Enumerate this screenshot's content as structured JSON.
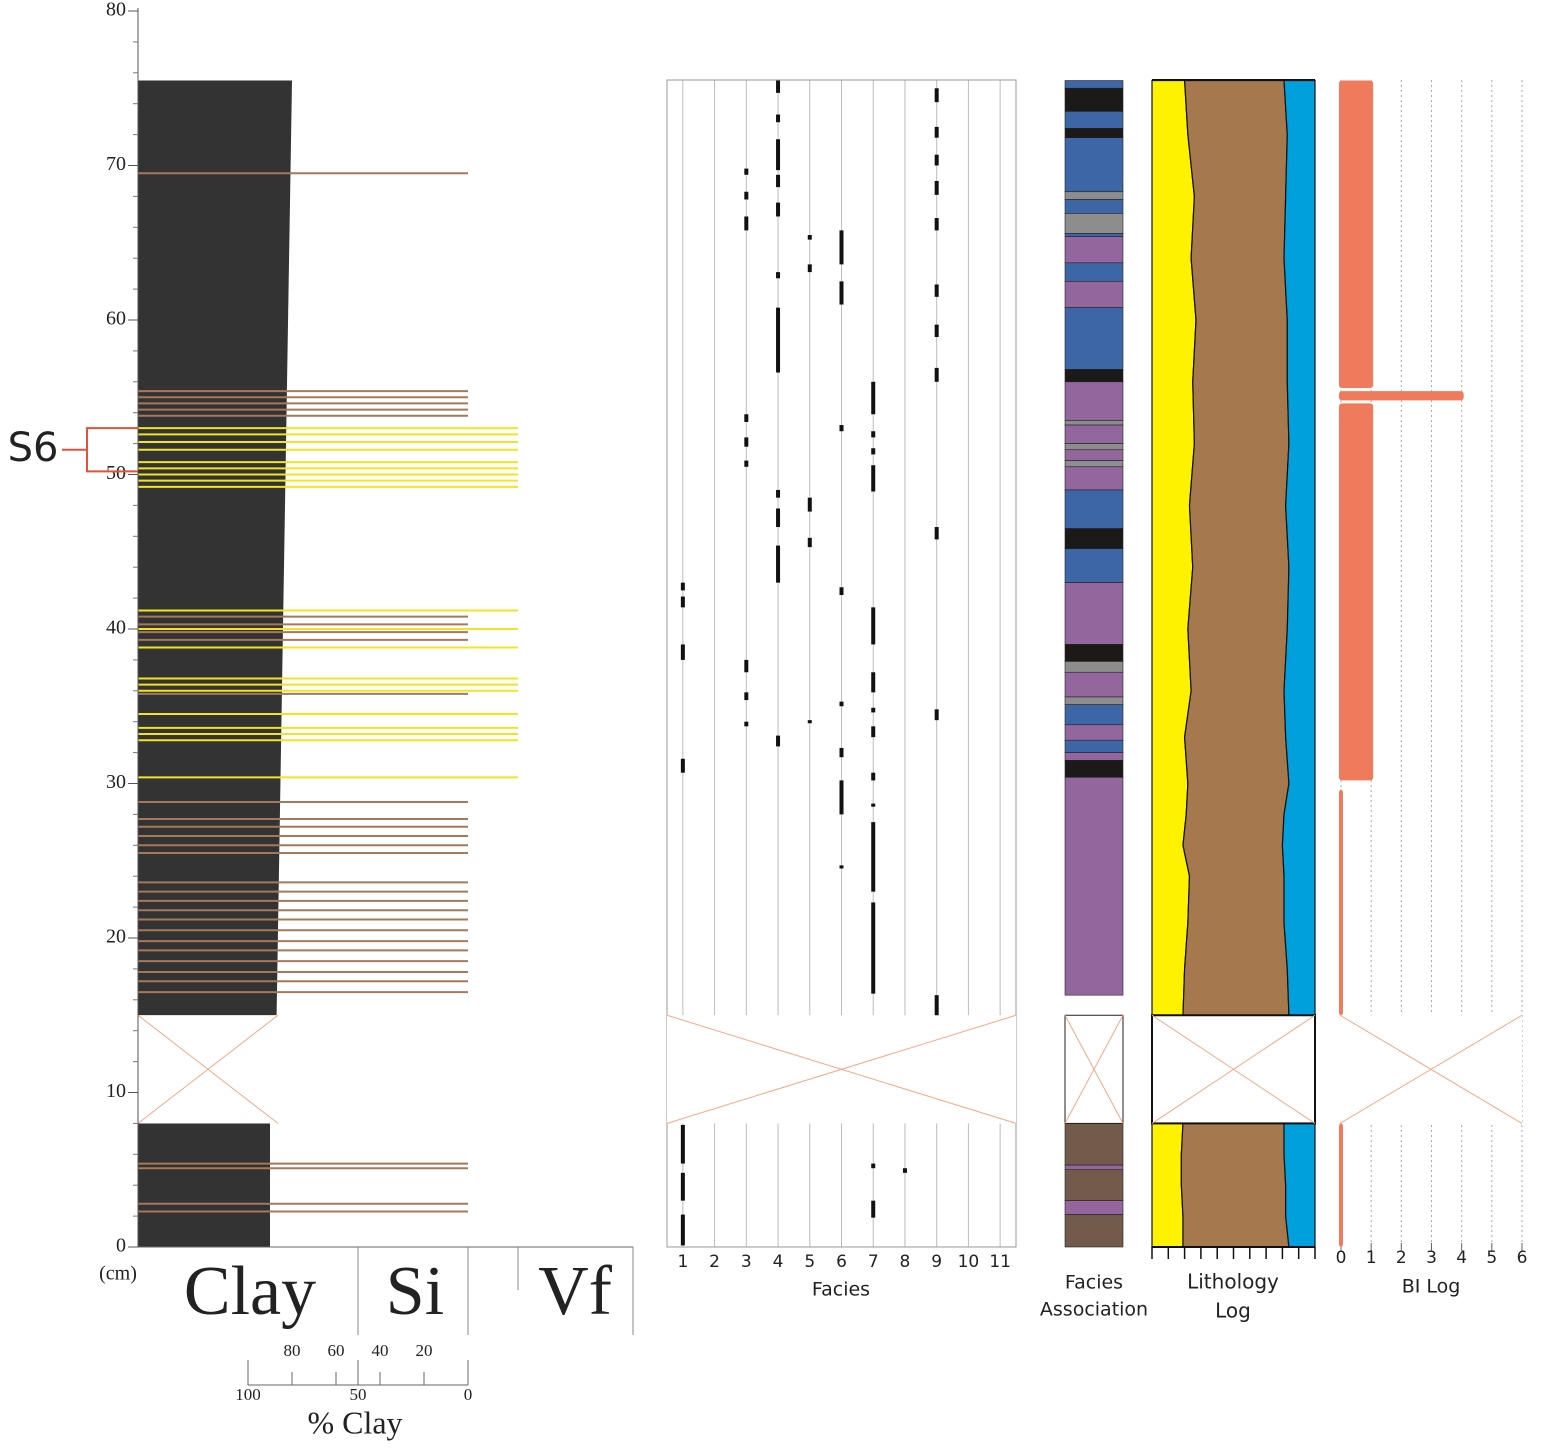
{
  "chart_data": [
    {
      "type": "grain-size-log",
      "ylabel": "(cm)",
      "ylim": [
        0,
        80
      ],
      "yticks": [
        0,
        10,
        20,
        30,
        40,
        50,
        60,
        70,
        80
      ],
      "yminorticks": [
        2,
        4,
        6,
        8,
        12,
        14,
        16,
        18,
        22,
        24,
        26,
        28,
        32,
        34,
        36,
        38,
        42,
        44,
        46,
        48,
        52,
        54,
        56,
        58,
        62,
        64,
        66,
        68,
        72,
        74,
        76,
        78
      ],
      "depth_gap": [
        8,
        15
      ],
      "columns": [
        "Clay",
        "Si",
        "Vf"
      ],
      "xlabel": "% Clay",
      "xlim": [
        100,
        0
      ],
      "xticks": [
        100,
        50,
        0
      ],
      "xminorticks": [
        80,
        60,
        40,
        20
      ],
      "clay_profile": {
        "color": "#333333",
        "depth": [
          0,
          8,
          15,
          75.5
        ],
        "values": [
          90,
          90,
          87,
          80
        ]
      },
      "silt_laminae": {
        "color": "#a5795a",
        "depths": [
          2.3,
          2.8,
          5.1,
          5.4,
          16.5,
          17.2,
          17.8,
          18.5,
          19.2,
          19.8,
          20.5,
          21.2,
          21.8,
          22.4,
          23.0,
          23.6,
          25.5,
          26.0,
          26.6,
          27.2,
          27.7,
          28.8,
          35.8,
          39.3,
          39.8,
          40.3,
          40.8,
          53.8,
          54.2,
          54.6,
          55.0,
          55.4,
          69.5
        ]
      },
      "sand_laminae": {
        "color": "#f2e422",
        "depths": [
          30.4,
          32.8,
          33.2,
          33.6,
          34.5,
          36.0,
          36.4,
          36.8,
          38.8,
          40.0,
          41.2,
          49.2,
          49.6,
          50.0,
          50.4,
          50.8,
          51.6,
          52.1,
          52.6,
          53.0
        ]
      },
      "annotation": {
        "label": "S6",
        "from": 50.2,
        "to": 53.0,
        "color": "#e0533a"
      }
    },
    {
      "type": "facies",
      "xlabel": "Facies",
      "xlim": [
        0.5,
        11.5
      ],
      "xticks": [
        1,
        2,
        3,
        4,
        5,
        6,
        7,
        8,
        9,
        10,
        11
      ],
      "color": "#111111",
      "segments": [
        [
          1,
          43.0,
          42.5
        ],
        [
          1,
          42.1,
          41.4
        ],
        [
          1,
          39.0,
          38.0
        ],
        [
          1,
          31.6,
          30.7
        ],
        [
          1,
          7.9,
          5.4
        ],
        [
          1,
          4.8,
          3.0
        ],
        [
          1,
          2.1,
          0.1
        ],
        [
          3,
          69.8,
          69.4
        ],
        [
          3,
          68.3,
          67.8
        ],
        [
          3,
          66.7,
          65.8
        ],
        [
          3,
          53.9,
          53.4
        ],
        [
          3,
          52.4,
          51.8
        ],
        [
          3,
          50.9,
          50.5
        ],
        [
          3,
          38.0,
          37.2
        ],
        [
          3,
          35.9,
          35.4
        ],
        [
          3,
          34.0,
          33.7
        ],
        [
          4,
          75.5,
          74.7
        ],
        [
          4,
          73.3,
          72.8
        ],
        [
          4,
          71.7,
          69.7
        ],
        [
          4,
          69.4,
          68.6
        ],
        [
          4,
          67.6,
          66.7
        ],
        [
          4,
          63.1,
          62.7
        ],
        [
          4,
          60.8,
          56.6
        ],
        [
          4,
          49.0,
          48.5
        ],
        [
          4,
          47.8,
          46.6
        ],
        [
          4,
          45.4,
          43.0
        ],
        [
          4,
          33.1,
          32.4
        ],
        [
          5,
          65.5,
          65.2
        ],
        [
          5,
          63.6,
          63.1
        ],
        [
          5,
          48.5,
          47.6
        ],
        [
          5,
          45.9,
          45.3
        ],
        [
          5,
          34.1,
          33.9
        ],
        [
          6,
          65.8,
          63.6
        ],
        [
          6,
          62.5,
          61.0
        ],
        [
          6,
          53.2,
          52.8
        ],
        [
          6,
          42.7,
          42.2
        ],
        [
          6,
          35.3,
          35.0
        ],
        [
          6,
          32.3,
          31.7
        ],
        [
          6,
          30.2,
          28.0
        ],
        [
          6,
          24.7,
          24.5
        ],
        [
          7,
          56.0,
          53.9
        ],
        [
          7,
          52.8,
          52.4
        ],
        [
          7,
          51.7,
          51.3
        ],
        [
          7,
          50.6,
          48.9
        ],
        [
          7,
          41.4,
          39.0
        ],
        [
          7,
          37.2,
          35.9
        ],
        [
          7,
          34.9,
          34.6
        ],
        [
          7,
          33.7,
          33.0
        ],
        [
          7,
          30.7,
          30.2
        ],
        [
          7,
          28.7,
          28.5
        ],
        [
          7,
          27.5,
          23.0
        ],
        [
          7,
          22.3,
          16.4
        ],
        [
          7,
          5.4,
          5.1
        ],
        [
          7,
          3.0,
          1.9
        ],
        [
          8,
          5.1,
          4.8
        ],
        [
          9,
          75.0,
          74.1
        ],
        [
          9,
          72.5,
          71.8
        ],
        [
          9,
          70.7,
          70.0
        ],
        [
          9,
          69.0,
          68.1
        ],
        [
          9,
          66.6,
          65.8
        ],
        [
          9,
          62.3,
          61.5
        ],
        [
          9,
          59.7,
          58.9
        ],
        [
          9,
          56.9,
          56.0
        ],
        [
          9,
          46.6,
          45.8
        ],
        [
          9,
          34.8,
          34.1
        ],
        [
          9,
          16.3,
          15.0
        ]
      ]
    },
    {
      "type": "facies-association",
      "xlabel": [
        "Facies",
        "Association"
      ],
      "bands": [
        {
          "from": 75.0,
          "to": 75.5,
          "color": "#3c66a6"
        },
        {
          "from": 73.5,
          "to": 75.0,
          "color": "#1c1a18"
        },
        {
          "from": 72.4,
          "to": 73.5,
          "color": "#3c66a6"
        },
        {
          "from": 71.8,
          "to": 72.4,
          "color": "#1c1a18"
        },
        {
          "from": 68.3,
          "to": 71.8,
          "color": "#3c66a6"
        },
        {
          "from": 67.8,
          "to": 68.3,
          "color": "#8d8d8d"
        },
        {
          "from": 66.9,
          "to": 67.8,
          "color": "#3c66a6"
        },
        {
          "from": 65.6,
          "to": 66.9,
          "color": "#8d8d8d"
        },
        {
          "from": 65.4,
          "to": 65.6,
          "color": "#3c66a6"
        },
        {
          "from": 63.7,
          "to": 65.4,
          "color": "#93669e"
        },
        {
          "from": 62.5,
          "to": 63.7,
          "color": "#3c66a6"
        },
        {
          "from": 60.8,
          "to": 62.5,
          "color": "#93669e"
        },
        {
          "from": 56.8,
          "to": 60.8,
          "color": "#3c66a6"
        },
        {
          "from": 56.0,
          "to": 56.8,
          "color": "#1c1a18"
        },
        {
          "from": 53.5,
          "to": 56.0,
          "color": "#93669e"
        },
        {
          "from": 53.2,
          "to": 53.5,
          "color": "#8d8d8d"
        },
        {
          "from": 52.0,
          "to": 53.2,
          "color": "#93669e"
        },
        {
          "from": 51.6,
          "to": 52.0,
          "color": "#8d8d8d"
        },
        {
          "from": 50.9,
          "to": 51.6,
          "color": "#93669e"
        },
        {
          "from": 50.5,
          "to": 50.9,
          "color": "#8d8d8d"
        },
        {
          "from": 49.0,
          "to": 50.5,
          "color": "#93669e"
        },
        {
          "from": 46.5,
          "to": 49.0,
          "color": "#3c66a6"
        },
        {
          "from": 45.2,
          "to": 46.5,
          "color": "#1c1a18"
        },
        {
          "from": 43.0,
          "to": 45.2,
          "color": "#3c66a6"
        },
        {
          "from": 39.0,
          "to": 43.0,
          "color": "#93669e"
        },
        {
          "from": 37.9,
          "to": 39.0,
          "color": "#1c1a18"
        },
        {
          "from": 37.2,
          "to": 37.9,
          "color": "#8d8d8d"
        },
        {
          "from": 35.6,
          "to": 37.2,
          "color": "#93669e"
        },
        {
          "from": 35.1,
          "to": 35.6,
          "color": "#8d8d8d"
        },
        {
          "from": 33.8,
          "to": 35.1,
          "color": "#3c66a6"
        },
        {
          "from": 32.8,
          "to": 33.8,
          "color": "#93669e"
        },
        {
          "from": 32.0,
          "to": 32.8,
          "color": "#3c66a6"
        },
        {
          "from": 31.5,
          "to": 32.0,
          "color": "#93669e"
        },
        {
          "from": 30.4,
          "to": 31.5,
          "color": "#1c1a18"
        },
        {
          "from": 16.3,
          "to": 30.4,
          "color": "#93669e"
        },
        {
          "from": 5.3,
          "to": 8.0,
          "color": "#735b4b"
        },
        {
          "from": 5.0,
          "to": 5.3,
          "color": "#93669e"
        },
        {
          "from": 3.0,
          "to": 5.0,
          "color": "#735b4b"
        },
        {
          "from": 2.1,
          "to": 3.0,
          "color": "#93669e"
        },
        {
          "from": 0,
          "to": 2.1,
          "color": "#735b4b"
        }
      ]
    },
    {
      "type": "lithology",
      "xlabel": [
        "Lithology",
        "Log"
      ],
      "xlim": [
        0,
        10
      ],
      "xticks": [
        0,
        1,
        2,
        3,
        4,
        5,
        6,
        7,
        8,
        9,
        10
      ],
      "depth": [
        0,
        2,
        4,
        6,
        8,
        15,
        18,
        21,
        24,
        26,
        28,
        30,
        33,
        36,
        40,
        44,
        48,
        52,
        56,
        60,
        64,
        68,
        72,
        75.5
      ],
      "series": [
        {
          "color": "#fff200",
          "values": [
            1.9,
            1.9,
            1.8,
            1.8,
            1.9,
            1.9,
            2.0,
            2.2,
            2.3,
            1.9,
            2.1,
            2.2,
            2.0,
            2.4,
            2.2,
            2.5,
            2.3,
            2.6,
            2.5,
            2.7,
            2.4,
            2.6,
            2.2,
            2.0
          ]
        },
        {
          "color": "#a5784e",
          "values": [
            6.5,
            6.3,
            6.4,
            6.3,
            6.2,
            6.5,
            6.3,
            5.9,
            5.8,
            6.1,
            6.0,
            6.2,
            6.2,
            5.7,
            6.1,
            5.9,
            5.9,
            5.8,
            5.8,
            5.6,
            5.7,
            5.6,
            6.1,
            6.1
          ]
        },
        {
          "color": "#00a0dc",
          "values": [
            1.6,
            1.8,
            1.8,
            1.9,
            1.9,
            1.6,
            1.7,
            1.9,
            1.9,
            2.0,
            1.9,
            1.6,
            1.8,
            1.9,
            1.7,
            1.6,
            1.8,
            1.6,
            1.7,
            1.7,
            1.9,
            1.8,
            1.7,
            1.9
          ]
        }
      ]
    },
    {
      "type": "bi-log",
      "xlabel": "BI Log",
      "xlim": [
        0,
        6
      ],
      "xticks": [
        0,
        1,
        2,
        3,
        4,
        5,
        6
      ],
      "grid": true,
      "color": "#f07a5c",
      "segments": [
        [
          0,
          8,
          0
        ],
        [
          15,
          29.6,
          0
        ],
        [
          30.2,
          54.6,
          1
        ],
        [
          54.8,
          55.4,
          4
        ],
        [
          55.6,
          75.5,
          1
        ]
      ]
    }
  ]
}
